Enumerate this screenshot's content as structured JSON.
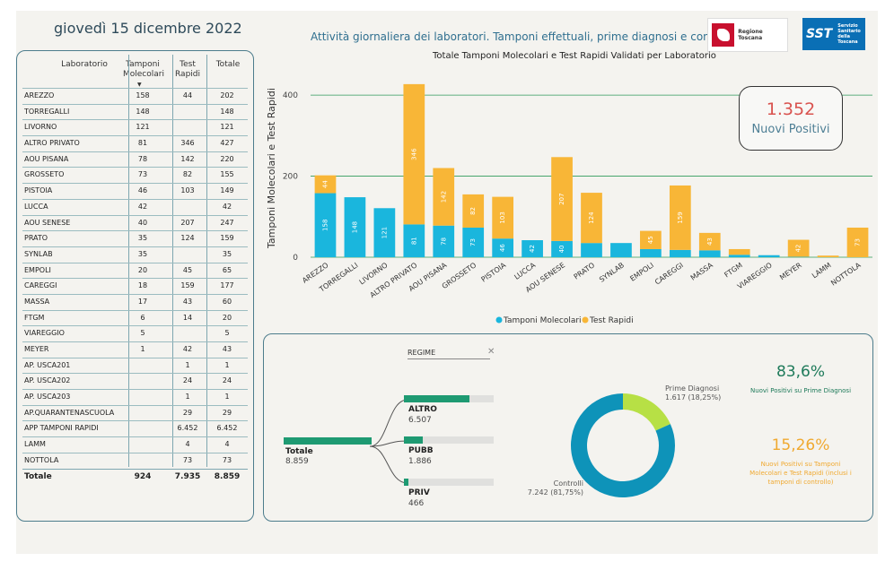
{
  "date": "giovedì 15 dicembre 2022",
  "page_title": "Attività giornaliera dei laboratori. Tamponi effettuali, prime diagnosi e controlli",
  "logos": {
    "regione": "Regione Toscana",
    "sst_mark": "SST",
    "sst_text": "Servizio Sanitario della Toscana"
  },
  "table": {
    "headers": {
      "lab": "Laboratorio",
      "mol": "Tamponi Molecolari",
      "rap": "Test Rapidi",
      "tot": "Totale"
    },
    "rows": [
      {
        "lab": "AREZZO",
        "mol": "158",
        "rap": "44",
        "tot": "202"
      },
      {
        "lab": "TORREGALLI",
        "mol": "148",
        "rap": "",
        "tot": "148"
      },
      {
        "lab": "LIVORNO",
        "mol": "121",
        "rap": "",
        "tot": "121"
      },
      {
        "lab": "ALTRO PRIVATO",
        "mol": "81",
        "rap": "346",
        "tot": "427"
      },
      {
        "lab": "AOU PISANA",
        "mol": "78",
        "rap": "142",
        "tot": "220"
      },
      {
        "lab": "GROSSETO",
        "mol": "73",
        "rap": "82",
        "tot": "155"
      },
      {
        "lab": "PISTOIA",
        "mol": "46",
        "rap": "103",
        "tot": "149"
      },
      {
        "lab": "LUCCA",
        "mol": "42",
        "rap": "",
        "tot": "42"
      },
      {
        "lab": "AOU SENESE",
        "mol": "40",
        "rap": "207",
        "tot": "247"
      },
      {
        "lab": "PRATO",
        "mol": "35",
        "rap": "124",
        "tot": "159"
      },
      {
        "lab": "SYNLAB",
        "mol": "35",
        "rap": "",
        "tot": "35"
      },
      {
        "lab": "EMPOLI",
        "mol": "20",
        "rap": "45",
        "tot": "65"
      },
      {
        "lab": "CAREGGI",
        "mol": "18",
        "rap": "159",
        "tot": "177"
      },
      {
        "lab": "MASSA",
        "mol": "17",
        "rap": "43",
        "tot": "60"
      },
      {
        "lab": "FTGM",
        "mol": "6",
        "rap": "14",
        "tot": "20"
      },
      {
        "lab": "VIAREGGIO",
        "mol": "5",
        "rap": "",
        "tot": "5"
      },
      {
        "lab": "MEYER",
        "mol": "1",
        "rap": "42",
        "tot": "43"
      },
      {
        "lab": "AP. USCA201",
        "mol": "",
        "rap": "1",
        "tot": "1"
      },
      {
        "lab": "AP. USCA202",
        "mol": "",
        "rap": "24",
        "tot": "24"
      },
      {
        "lab": "AP. USCA203",
        "mol": "",
        "rap": "1",
        "tot": "1"
      },
      {
        "lab": "AP.QUARANTENASCUOLA",
        "mol": "",
        "rap": "29",
        "tot": "29"
      },
      {
        "lab": "APP TAMPONI RAPIDI",
        "mol": "",
        "rap": "6.452",
        "tot": "6.452"
      },
      {
        "lab": "LAMM",
        "mol": "",
        "rap": "4",
        "tot": "4"
      },
      {
        "lab": "NOTTOLA",
        "mol": "",
        "rap": "73",
        "tot": "73"
      }
    ],
    "total": {
      "lab": "Totale",
      "mol": "924",
      "rap": "7.935",
      "tot": "8.859"
    }
  },
  "chart_data": {
    "type": "bar",
    "stacked": true,
    "title": "Totale Tamponi Molecolari e Test Rapidi Validati per Laboratorio",
    "ylabel": "Tamponi Molecolari e Test Rapidi",
    "ylim": [
      0,
      440
    ],
    "yticks": [
      0,
      200,
      400
    ],
    "legend_position": "bottom",
    "categories": [
      "AREZZO",
      "TORREGALLI",
      "LIVORNO",
      "ALTRO PRIVATO",
      "AOU PISANA",
      "GROSSETO",
      "PISTOIA",
      "LUCCA",
      "AOU SENESE",
      "PRATO",
      "SYNLAB",
      "EMPOLI",
      "CAREGGI",
      "MASSA",
      "FTGM",
      "VIAREGGIO",
      "MEYER",
      "LAMM",
      "NOTTOLA"
    ],
    "series": [
      {
        "name": "Tamponi Molecolari",
        "color": "#1ab6dd",
        "values": [
          158,
          148,
          121,
          81,
          78,
          73,
          46,
          42,
          40,
          35,
          35,
          20,
          18,
          17,
          6,
          5,
          1,
          0,
          0
        ]
      },
      {
        "name": "Test Rapidi",
        "color": "#f8b637",
        "values": [
          44,
          0,
          0,
          346,
          142,
          82,
          103,
          0,
          207,
          124,
          0,
          45,
          159,
          43,
          14,
          0,
          42,
          4,
          73
        ]
      }
    ]
  },
  "kpi_positivi": {
    "value": "1.352",
    "label": "Nuovi Positivi"
  },
  "tree": {
    "header": "REGIME",
    "root": {
      "label": "Totale",
      "value": "8.859"
    },
    "nodes": [
      {
        "label": "ALTRO",
        "value": "6.507",
        "fraction": 0.7345
      },
      {
        "label": "PUBB",
        "value": "1.886",
        "fraction": 0.2129
      },
      {
        "label": "PRIV",
        "value": "466",
        "fraction": 0.0526
      }
    ]
  },
  "donut": {
    "segments": [
      {
        "label": "Prime Diagnosi",
        "value_text": "1.617 (18,25%)",
        "fraction": 0.1825,
        "color": "#b7e045"
      },
      {
        "label": "Controlli",
        "value_text": "7.242 (81,75%)",
        "fraction": 0.8175,
        "color": "#0e93b9"
      }
    ]
  },
  "kpi_pct1": {
    "value": "83,6%",
    "label": "Nuovi Positivi su Prime Diagnosi",
    "color": "#1e7a5a"
  },
  "kpi_pct2": {
    "value": "15,26%",
    "label": "Nuovi Positivi su Tamponi Molecolari e Test Rapidi (inclusi i tamponi di controllo)",
    "color": "#f0a930"
  }
}
